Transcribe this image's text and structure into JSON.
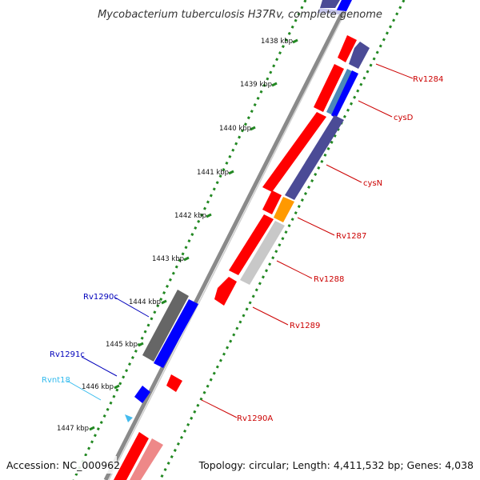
{
  "title": "Mycobacterium tuberculosis H37Rv, complete genome",
  "footer": {
    "accession": "Accession: NC_000962",
    "topology": "Topology: circular; Length: 4,411,532 bp; Genes: 4,038"
  },
  "axis": {
    "unit": "kbp",
    "ticks": [
      "1438 kbp",
      "1439 kbp",
      "1440 kbp",
      "1441 kbp",
      "1442 kbp",
      "1443 kbp",
      "1444 kbp",
      "1445 kbp",
      "1446 kbp",
      "1447 kbp"
    ]
  },
  "gene_labels": [
    {
      "text": "Rv1284",
      "color": "#cc0000"
    },
    {
      "text": "cysD",
      "color": "#cc0000"
    },
    {
      "text": "cysN",
      "color": "#cc0000"
    },
    {
      "text": "Rv1287",
      "color": "#cc0000"
    },
    {
      "text": "Rv1288",
      "color": "#cc0000"
    },
    {
      "text": "Rv1289",
      "color": "#cc0000"
    },
    {
      "text": "Rv1290A",
      "color": "#cc0000"
    },
    {
      "text": "Rv1290c",
      "color": "#0000bb"
    },
    {
      "text": "Rv1291c",
      "color": "#0000bb"
    },
    {
      "text": "Rvnt18",
      "color": "#33bbee"
    }
  ],
  "colors": {
    "forward_cds": "#ff0000",
    "reverse_cds": "#0000ff",
    "orf_purple": "#4b4b96",
    "steel": "#4b88b8",
    "orange": "#ff9900",
    "gray": "#666666",
    "light_gray": "#c8c8c8",
    "pink": "#ee8888",
    "rna": "#44bbee",
    "backbone": "#888888",
    "tick_dots": "#228822"
  }
}
